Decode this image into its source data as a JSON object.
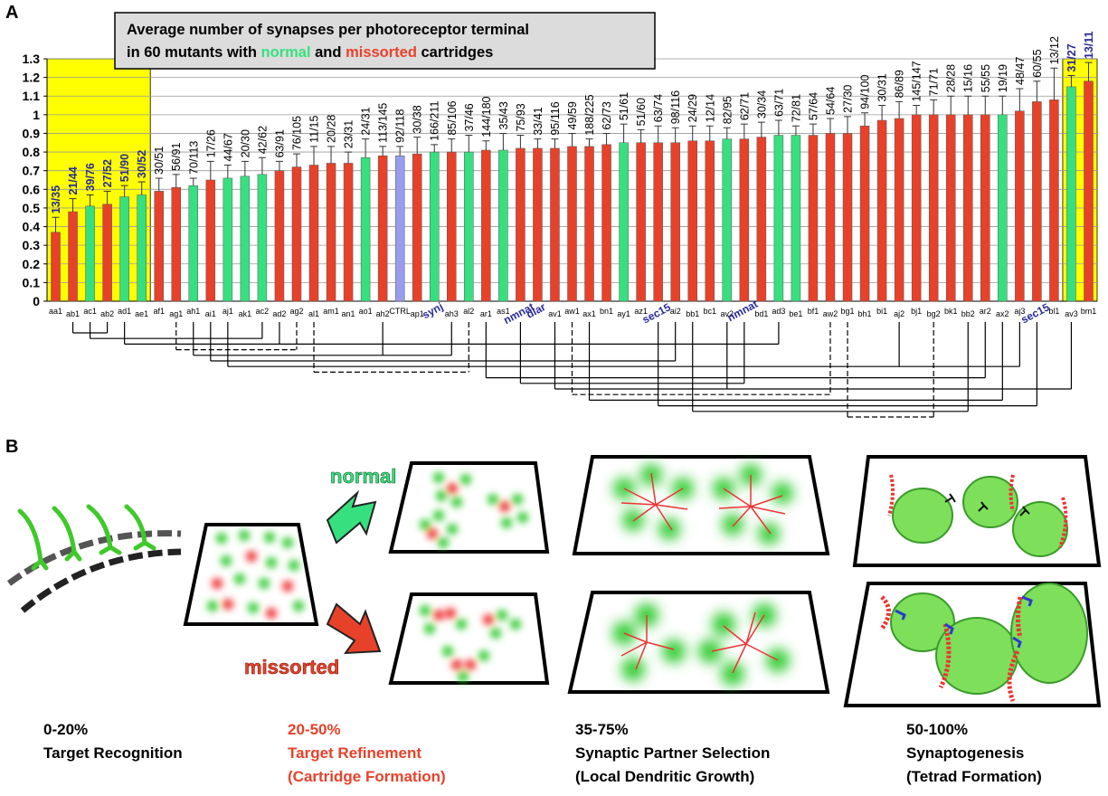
{
  "chart_data": {
    "type": "bar",
    "panel_label": "A",
    "title": {
      "line1": "Average number of synapses per photoreceptor terminal",
      "line2": [
        "in 60 mutants with ",
        "normal",
        " and ",
        "missorted",
        " cartridges"
      ]
    },
    "categories": [
      "aa1",
      "ab1",
      "ac1",
      "ab2",
      "ad1",
      "ae1",
      "af1",
      "ag1",
      "ah1",
      "ai1",
      "aj1",
      "ak1",
      "ac2",
      "ad2",
      "ag2",
      "al1",
      "am1",
      "an1",
      "ao1",
      "ah2",
      "CTRL",
      "ap1",
      "synj",
      "ah3",
      "al2",
      "ar1",
      "as1",
      "nmnat",
      "dlar",
      "av1",
      "aw1",
      "ax1",
      "bn1",
      "ay1",
      "az1",
      "sec15",
      "ai2",
      "bb1",
      "bc1",
      "av2",
      "nmnat",
      "bd1",
      "ad3",
      "be1",
      "bf1",
      "aw2",
      "bg1",
      "bh1",
      "bi1",
      "aj2",
      "bj1",
      "bg2",
      "bk1",
      "bb2",
      "ar2",
      "ax2",
      "aj3",
      "sec15",
      "bl1",
      "av3",
      "bm1"
    ],
    "values": [
      0.37,
      0.48,
      0.51,
      0.52,
      0.56,
      0.57,
      0.59,
      0.61,
      0.62,
      0.65,
      0.66,
      0.67,
      0.68,
      0.7,
      0.72,
      0.73,
      0.74,
      0.74,
      0.77,
      0.78,
      0.78,
      0.79,
      0.8,
      0.8,
      0.8,
      0.81,
      0.81,
      0.82,
      0.82,
      0.82,
      0.83,
      0.83,
      0.84,
      0.85,
      0.85,
      0.85,
      0.85,
      0.86,
      0.86,
      0.87,
      0.87,
      0.88,
      0.89,
      0.89,
      0.89,
      0.9,
      0.9,
      0.94,
      0.97,
      0.98,
      1.0,
      1.0,
      1.0,
      1.0,
      1.0,
      1.0,
      1.02,
      1.07,
      1.08,
      1.15,
      1.18
    ],
    "errors": [
      0.08,
      0.07,
      0.06,
      0.07,
      0.06,
      0.07,
      0.07,
      0.07,
      0.04,
      0.1,
      0.07,
      0.08,
      0.09,
      0.05,
      0.07,
      0.1,
      0.09,
      0.06,
      0.1,
      0.05,
      0.05,
      0.09,
      0.04,
      0.07,
      0.09,
      0.05,
      0.09,
      0.07,
      0.05,
      0.05,
      0.07,
      0.04,
      0.06,
      0.1,
      0.07,
      0.09,
      0.08,
      0.08,
      0.08,
      0.06,
      0.08,
      0.08,
      0.08,
      0.05,
      0.06,
      0.08,
      0.09,
      0.07,
      0.08,
      0.09,
      0.05,
      0.08,
      0.1,
      0.1,
      0.1,
      0.1,
      0.12,
      0.11,
      0.17,
      0.06,
      0.1
    ],
    "bar_labels": [
      "13/35",
      "21/44",
      "39/76",
      "27/52",
      "51/90",
      "30/52",
      "30/51",
      "56/91",
      "70/113",
      "17/26",
      "44/67",
      "20/30",
      "42/62",
      "63/91",
      "76/105",
      "11/15",
      "20/28",
      "23/31",
      "24/31",
      "113/145",
      "92/118",
      "30/38",
      "166/211",
      "85/106",
      "37/46",
      "144/180",
      "35/43",
      "75/93",
      "33/41",
      "95/116",
      "49/59",
      "188/225",
      "62/73",
      "51/61",
      "51/60",
      "63/74",
      "98/116",
      "24/29",
      "12/14",
      "82/95",
      "62/71",
      "30/34",
      "63/71",
      "72/81",
      "57/64",
      "54/64",
      "27/30",
      "94/100",
      "30/31",
      "86/89",
      "145/147",
      "71/71",
      "28/28",
      "15/16",
      "55/55",
      "19/19",
      "48/47",
      "60/55",
      "13/12",
      "31/27",
      "13/11"
    ],
    "colors": [
      "#e8412a",
      "#e8412a",
      "#37e07f",
      "#e8412a",
      "#37e07f",
      "#37e07f",
      "#e8412a",
      "#e8412a",
      "#37e07f",
      "#e8412a",
      "#37e07f",
      "#37e07f",
      "#37e07f",
      "#e8412a",
      "#e8412a",
      "#e8412a",
      "#e8412a",
      "#e8412a",
      "#37e07f",
      "#e8412a",
      "#9a9cf0",
      "#e8412a",
      "#37e07f",
      "#e8412a",
      "#37e07f",
      "#e8412a",
      "#37e07f",
      "#e8412a",
      "#e8412a",
      "#e8412a",
      "#e8412a",
      "#e8412a",
      "#e8412a",
      "#37e07f",
      "#e8412a",
      "#e8412a",
      "#e8412a",
      "#e8412a",
      "#e8412a",
      "#37e07f",
      "#e8412a",
      "#e8412a",
      "#37e07f",
      "#37e07f",
      "#e8412a",
      "#e8412a",
      "#e8412a",
      "#e8412a",
      "#e8412a",
      "#e8412a",
      "#e8412a",
      "#e8412a",
      "#e8412a",
      "#e8412a",
      "#e8412a",
      "#37e07f",
      "#e8412a",
      "#e8412a",
      "#e8412a",
      "#37e07f",
      "#e8412a"
    ],
    "normal_color": "#37e07f",
    "missorted_color": "#e8412a",
    "highlighted_categories": [
      22,
      27,
      28,
      35,
      40,
      57
    ],
    "highlight_color": "#2a2a9a",
    "shaded_ranges": [
      [
        0,
        5
      ],
      [
        59,
        60
      ]
    ],
    "shade_color": "#ffff00",
    "ylim": [
      0,
      1.3
    ],
    "yticks": [
      0,
      0.1,
      0.2,
      0.3,
      0.4,
      0.5,
      0.6,
      0.7,
      0.8,
      0.9,
      1,
      1.1,
      1.2,
      1.3
    ],
    "grid": true
  },
  "panel_b": {
    "label": "B",
    "normal": "normal",
    "missorted": "missorted",
    "stages": [
      {
        "range": "0-20%",
        "lines": [
          "Target Recognition"
        ]
      },
      {
        "range": "20-50%",
        "lines": [
          "Target Refinement",
          "(Cartridge Formation)"
        ]
      },
      {
        "range": "35-75%",
        "lines": [
          "Synaptic Partner Selection",
          "(Local Dendritic Growth)"
        ]
      },
      {
        "range": "50-100%",
        "lines": [
          "Synaptogenesis",
          "(Tetrad Formation)"
        ]
      }
    ]
  }
}
